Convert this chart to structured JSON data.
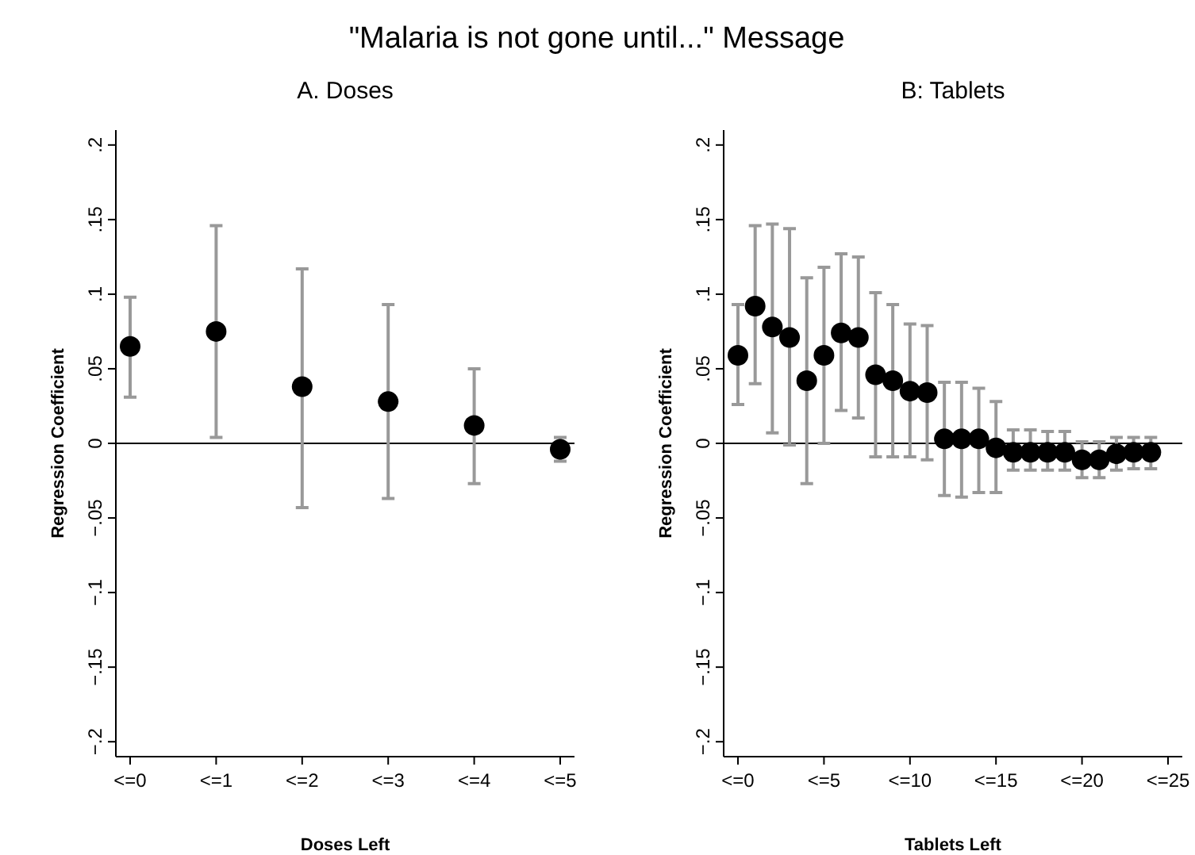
{
  "chart_data": [
    {
      "type": "scatter",
      "title": "A. Doses",
      "annotations": [
        "\"Malaria is not gone until...\" Message"
      ],
      "xlabel": "Doses Left",
      "ylabel": "Regression Coefficient",
      "categories": [
        "<=0",
        "<=1",
        "<=2",
        "<=3",
        "<=4",
        "<=5"
      ],
      "series": [
        {
          "color": "#000000",
          "values": [
            0.065,
            0.075,
            0.038,
            0.028,
            0.012,
            -0.004
          ],
          "errors": [
            [
              0.031,
              0.098
            ],
            [
              0.004,
              0.146
            ],
            [
              -0.043,
              0.117
            ],
            [
              -0.037,
              0.093
            ],
            [
              -0.027,
              0.05
            ],
            [
              -0.012,
              0.004
            ]
          ]
        }
      ],
      "ylim": [
        -0.21,
        0.21
      ],
      "yticks": [
        {
          "value": -0.2,
          "label": "−.2"
        },
        {
          "value": -0.15,
          "label": "−.15"
        },
        {
          "value": -0.1,
          "label": "−.1"
        },
        {
          "value": -0.05,
          "label": "−.05"
        },
        0,
        {
          "value": 0.05,
          "label": ".05"
        },
        {
          "value": 0.1,
          "label": ".1"
        },
        {
          "value": 0.15,
          "label": ".15"
        },
        {
          "value": 0.2,
          "label": ".2"
        }
      ],
      "ref_lines": [
        {
          "axis": "y",
          "value": 0,
          "color": "#000000"
        }
      ],
      "marker": "circle",
      "grid": false
    },
    {
      "type": "scatter",
      "title": "B: Tablets",
      "xlabel": "Tablets Left",
      "ylabel": "Regression Coefficient",
      "categories": [
        "<=0",
        null,
        null,
        null,
        null,
        "<=5",
        null,
        null,
        null,
        null,
        "<=10",
        null,
        null,
        null,
        null,
        "<=15",
        null,
        null,
        null,
        null,
        "<=20",
        null,
        null,
        null,
        null,
        "<=25"
      ],
      "series": [
        {
          "color": "#000000",
          "values": [
            0.059,
            0.092,
            0.078,
            0.071,
            0.042,
            0.059,
            0.074,
            0.071,
            0.046,
            0.042,
            0.035,
            0.034,
            0.003,
            0.003,
            0.003,
            -0.003,
            -0.006,
            -0.006,
            -0.006,
            -0.006,
            -0.011,
            -0.011,
            -0.007,
            -0.006,
            -0.006,
            null
          ],
          "errors": [
            [
              0.026,
              0.093
            ],
            [
              0.04,
              0.146
            ],
            [
              0.007,
              0.147
            ],
            [
              -0.001,
              0.144
            ],
            [
              -0.027,
              0.111
            ],
            [
              0,
              0.118
            ],
            [
              0.022,
              0.127
            ],
            [
              0.017,
              0.125
            ],
            [
              -0.009,
              0.101
            ],
            [
              -0.009,
              0.093
            ],
            [
              -0.009,
              0.08
            ],
            [
              -0.011,
              0.079
            ],
            [
              -0.035,
              0.041
            ],
            [
              -0.036,
              0.041
            ],
            [
              -0.033,
              0.037
            ],
            [
              -0.033,
              0.028
            ],
            [
              -0.018,
              0.009
            ],
            [
              -0.018,
              0.009
            ],
            [
              -0.018,
              0.008
            ],
            [
              -0.018,
              0.008
            ],
            [
              -0.023,
              0.001
            ],
            [
              -0.023,
              0.001
            ],
            [
              -0.018,
              0.004
            ],
            [
              -0.017,
              0.004
            ],
            [
              -0.017,
              0.004
            ],
            null
          ]
        }
      ],
      "ylim": [
        -0.21,
        0.21
      ],
      "yticks": [
        {
          "value": -0.2,
          "label": "−.2"
        },
        {
          "value": -0.15,
          "label": "−.15"
        },
        {
          "value": -0.1,
          "label": "−.1"
        },
        {
          "value": -0.05,
          "label": "−.05"
        },
        0,
        {
          "value": 0.05,
          "label": ".05"
        },
        {
          "value": 0.1,
          "label": ".1"
        },
        {
          "value": 0.15,
          "label": ".15"
        },
        {
          "value": 0.2,
          "label": ".2"
        }
      ],
      "ref_lines": [
        {
          "axis": "y",
          "value": 0,
          "color": "#000000"
        }
      ],
      "marker": "circle",
      "grid": false
    }
  ]
}
